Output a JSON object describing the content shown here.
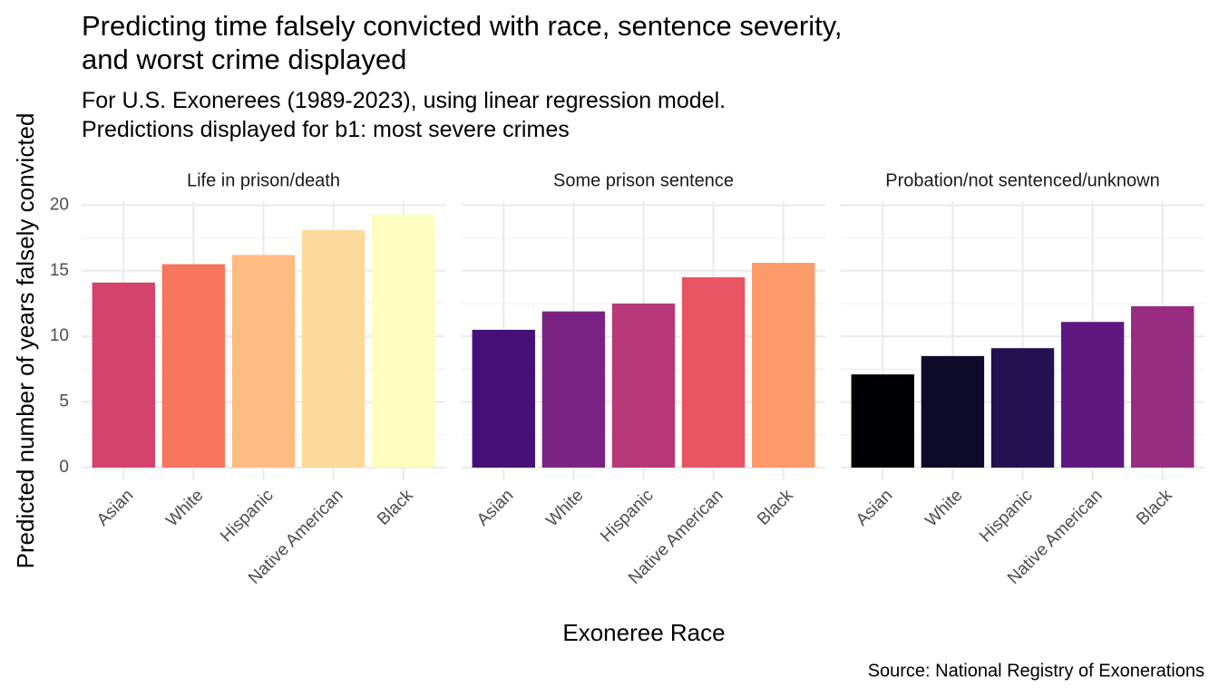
{
  "chart_data": {
    "type": "bar",
    "title": "Predicting time falsely convicted with race, sentence severity,\nand worst crime displayed",
    "subtitle": "For U.S. Exonerees (1989-2023), using linear regression model.\nPredictions displayed for b1: most severe crimes",
    "caption": "Source: National Registry of Exonerations",
    "x_label": "Exoneree Race",
    "y_label": "Predicted number of years falsely convicted",
    "categories": [
      "Asian",
      "White",
      "Hispanic",
      "Native American",
      "Black"
    ],
    "ylim": [
      -0.97,
      20.3
    ],
    "yticks": [
      0,
      5,
      10,
      15,
      20
    ],
    "minor_yticks": [
      2.5,
      7.5,
      12.5,
      17.5
    ],
    "grid": true,
    "facets": [
      {
        "title": "Life in prison/death",
        "values": [
          14.1,
          15.5,
          16.2,
          18.1,
          19.3
        ],
        "colors": [
          "#d3436e",
          "#f8765c",
          "#febb81",
          "#fdda9c",
          "#fcfdbf"
        ]
      },
      {
        "title": "Some prison sentence",
        "values": [
          10.5,
          11.9,
          12.5,
          14.5,
          15.6
        ],
        "colors": [
          "#451077",
          "#7b2382",
          "#b73779",
          "#e95462",
          "#fd9a6a"
        ]
      },
      {
        "title": "Probation/not sentenced/unknown",
        "values": [
          7.1,
          8.5,
          9.1,
          11.1,
          12.3
        ],
        "colors": [
          "#000004",
          "#0e0a2a",
          "#231151",
          "#5f187f",
          "#972c80"
        ]
      }
    ]
  }
}
